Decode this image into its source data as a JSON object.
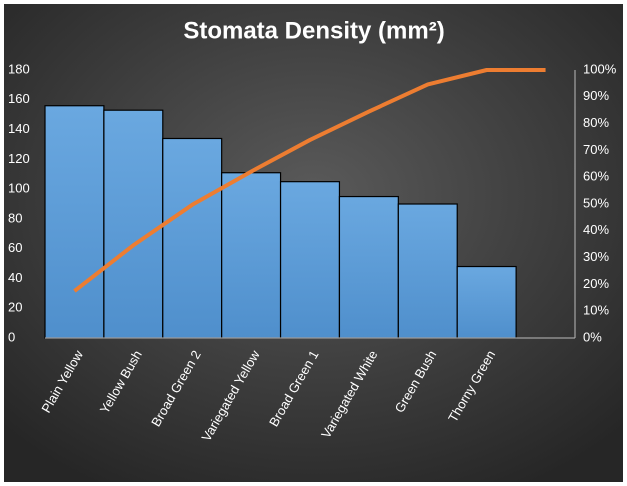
{
  "chart_data": {
    "type": "pareto",
    "title": "Stomata Density (mm²)",
    "categories": [
      "Plain Yellow",
      "Yellow Bush",
      "Broad Green 2",
      "Variegated Yellow",
      "Broad Green 1",
      "Variegated White",
      "Green Bush",
      "Thorny Green",
      null
    ],
    "series": [
      {
        "name": "Stomata Density",
        "color": "#5b9bd5",
        "values": [
          156,
          153,
          134,
          111,
          105,
          95,
          90,
          48,
          null
        ]
      },
      {
        "name": "Cumulative %",
        "color": "#ed7d31",
        "axis": "y2",
        "values": [
          17.5,
          34.6,
          49.7,
          62.1,
          73.9,
          84.5,
          94.6,
          100,
          100
        ]
      }
    ],
    "ylim": [
      0,
      180
    ],
    "yticks": [
      0,
      20,
      40,
      60,
      80,
      100,
      120,
      140,
      160,
      180
    ],
    "y2lim": [
      0,
      100
    ],
    "y2ticks": [
      {
        "value": 0,
        "label": "0%"
      },
      {
        "value": 10,
        "label": "10%"
      },
      {
        "value": 20,
        "label": "20%"
      },
      {
        "value": 30,
        "label": "30%"
      },
      {
        "value": 40,
        "label": "40%"
      },
      {
        "value": 50,
        "label": "50%"
      },
      {
        "value": 60,
        "label": "60%"
      },
      {
        "value": 70,
        "label": "70%"
      },
      {
        "value": 80,
        "label": "80%"
      },
      {
        "value": 90,
        "label": "90%"
      },
      {
        "value": 100,
        "label": "100%"
      }
    ],
    "grid": false
  }
}
